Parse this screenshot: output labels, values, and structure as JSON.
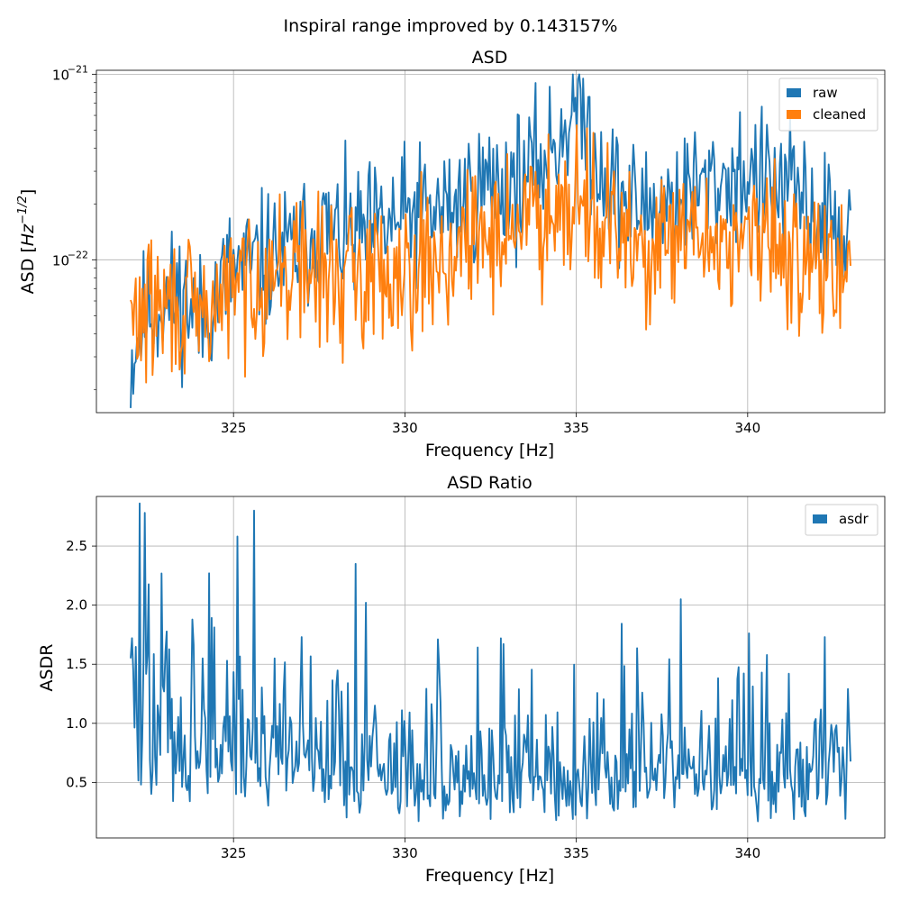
{
  "figure": {
    "suptitle": "Inspiral range improved by 0.143157%"
  },
  "chart_data": [
    {
      "type": "line",
      "title": "ASD",
      "xlabel": "Frequency [Hz]",
      "ylabel_main": "ASD [",
      "ylabel_math": "Hz",
      "ylabel_exp": "−1/2",
      "ylabel_close": "]",
      "xlim": [
        321,
        344
      ],
      "ylim": [
        1.5e-23,
        1.05e-21
      ],
      "yscale": "log",
      "xticks": [
        325,
        330,
        335,
        340
      ],
      "xtick_labels": [
        "325",
        "330",
        "335",
        "340"
      ],
      "yticks": [
        {
          "value": 1e-22,
          "base": "10",
          "exp": "−22"
        },
        {
          "value": 1e-21,
          "base": "10",
          "exp": "−21"
        }
      ],
      "grid": true,
      "legend_position": "top-right",
      "series": [
        {
          "name": "raw",
          "color": "#1f77b4",
          "x_range": [
            322.0,
            343.0
          ],
          "keypoints": [
            [
              322.0,
              2.7e-23
            ],
            [
              322.5,
              5.5e-23
            ],
            [
              323.0,
              6e-23
            ],
            [
              323.5,
              6.5e-23
            ],
            [
              324.0,
              4.5e-23
            ],
            [
              324.5,
              6.5e-23
            ],
            [
              325.0,
              9e-23
            ],
            [
              325.5,
              9e-23
            ],
            [
              326.0,
              1e-22
            ],
            [
              326.5,
              1.05e-22
            ],
            [
              327.0,
              1.2e-22
            ],
            [
              327.5,
              1.5e-22
            ],
            [
              328.0,
              1.35e-22
            ],
            [
              328.5,
              1.3e-22
            ],
            [
              329.0,
              1.4e-22
            ],
            [
              329.5,
              1.5e-22
            ],
            [
              330.0,
              1.7e-22
            ],
            [
              330.5,
              1.8e-22
            ],
            [
              331.0,
              1.8e-22
            ],
            [
              331.5,
              2e-22
            ],
            [
              332.0,
              2.3e-22
            ],
            [
              332.5,
              2.6e-22
            ],
            [
              333.0,
              2.6e-22
            ],
            [
              333.5,
              2.8e-22
            ],
            [
              334.0,
              3.3e-22
            ],
            [
              334.5,
              4.5e-22
            ],
            [
              334.9,
              6.5e-22
            ],
            [
              335.2,
              6e-22
            ],
            [
              335.5,
              3.8e-22
            ],
            [
              336.0,
              2.6e-22
            ],
            [
              336.5,
              2e-22
            ],
            [
              337.0,
              1.9e-22
            ],
            [
              337.5,
              2e-22
            ],
            [
              338.0,
              2.2e-22
            ],
            [
              338.5,
              2.4e-22
            ],
            [
              339.0,
              2.5e-22
            ],
            [
              339.5,
              2.8e-22
            ],
            [
              340.0,
              2.9e-22
            ],
            [
              340.5,
              2.6e-22
            ],
            [
              341.0,
              2.4e-22
            ],
            [
              341.5,
              2.2e-22
            ],
            [
              342.0,
              1.8e-22
            ],
            [
              342.5,
              1.5e-22
            ],
            [
              343.0,
              1.3e-22
            ]
          ],
          "noise": 0.42,
          "seed": 11
        },
        {
          "name": "cleaned",
          "color": "#ff7f0e",
          "x_range": [
            322.0,
            343.0
          ],
          "keypoints": [
            [
              322.0,
              4.5e-23
            ],
            [
              322.5,
              5.5e-23
            ],
            [
              323.0,
              5.5e-23
            ],
            [
              323.5,
              5.5e-23
            ],
            [
              324.0,
              4.5e-23
            ],
            [
              324.5,
              6e-23
            ],
            [
              325.0,
              7e-23
            ],
            [
              325.5,
              8e-23
            ],
            [
              326.0,
              8.5e-23
            ],
            [
              326.5,
              9e-23
            ],
            [
              327.0,
              9e-23
            ],
            [
              327.5,
              8.5e-23
            ],
            [
              328.0,
              8e-23
            ],
            [
              328.5,
              8e-23
            ],
            [
              329.0,
              8.5e-23
            ],
            [
              329.5,
              9e-23
            ],
            [
              330.0,
              9.5e-23
            ],
            [
              330.5,
              1e-22
            ],
            [
              331.0,
              1e-22
            ],
            [
              331.5,
              1.1e-22
            ],
            [
              332.0,
              1.2e-22
            ],
            [
              332.5,
              1.4e-22
            ],
            [
              333.0,
              1.5e-22
            ],
            [
              333.5,
              1.7e-22
            ],
            [
              334.0,
              1.8e-22
            ],
            [
              334.5,
              2.2e-22
            ],
            [
              335.0,
              2.4e-22
            ],
            [
              335.5,
              1.9e-22
            ],
            [
              336.0,
              1.4e-22
            ],
            [
              336.5,
              1.2e-22
            ],
            [
              337.0,
              1.1e-22
            ],
            [
              337.5,
              1.1e-22
            ],
            [
              338.0,
              1.2e-22
            ],
            [
              338.5,
              1.3e-22
            ],
            [
              339.0,
              1.3e-22
            ],
            [
              339.5,
              1.3e-22
            ],
            [
              340.0,
              1.3e-22
            ],
            [
              340.5,
              1.2e-22
            ],
            [
              341.0,
              1.2e-22
            ],
            [
              341.5,
              1.1e-22
            ],
            [
              342.0,
              1e-22
            ],
            [
              342.5,
              8.5e-23
            ],
            [
              343.0,
              7e-23
            ]
          ],
          "noise": 0.45,
          "seed": 29
        }
      ]
    },
    {
      "type": "line",
      "title": "ASD Ratio",
      "xlabel": "Frequency [Hz]",
      "ylabel": "ASDR",
      "xlim": [
        321,
        344
      ],
      "ylim": [
        0.03,
        2.92
      ],
      "yscale": "linear",
      "xticks": [
        325,
        330,
        335,
        340
      ],
      "xtick_labels": [
        "325",
        "330",
        "335",
        "340"
      ],
      "yticks": [
        0.5,
        1.0,
        1.5,
        2.0,
        2.5
      ],
      "ytick_labels": [
        "0.5",
        "1.0",
        "1.5",
        "2.0",
        "2.5"
      ],
      "grid": true,
      "legend_position": "top-right",
      "series": [
        {
          "name": "asdr",
          "color": "#1f77b4",
          "x_range": [
            322.0,
            343.0
          ],
          "keypoints": [
            [
              322.0,
              1.2
            ],
            [
              322.5,
              0.95
            ],
            [
              323.0,
              0.95
            ],
            [
              323.5,
              0.9
            ],
            [
              324.0,
              0.85
            ],
            [
              324.5,
              0.85
            ],
            [
              325.0,
              0.75
            ],
            [
              325.5,
              0.75
            ],
            [
              326.0,
              0.8
            ],
            [
              326.5,
              0.8
            ],
            [
              327.0,
              0.8
            ],
            [
              327.5,
              0.75
            ],
            [
              328.0,
              0.7
            ],
            [
              328.5,
              0.6
            ],
            [
              329.0,
              0.6
            ],
            [
              329.5,
              0.6
            ],
            [
              330.0,
              0.55
            ],
            [
              330.5,
              0.55
            ],
            [
              331.0,
              0.55
            ],
            [
              331.5,
              0.55
            ],
            [
              332.0,
              0.55
            ],
            [
              332.5,
              0.6
            ],
            [
              333.0,
              0.6
            ],
            [
              333.5,
              0.6
            ],
            [
              334.0,
              0.6
            ],
            [
              334.5,
              0.55
            ],
            [
              335.0,
              0.5
            ],
            [
              335.5,
              0.55
            ],
            [
              336.0,
              0.6
            ],
            [
              336.5,
              0.6
            ],
            [
              337.0,
              0.6
            ],
            [
              337.5,
              0.6
            ],
            [
              338.0,
              0.6
            ],
            [
              338.5,
              0.6
            ],
            [
              339.0,
              0.55
            ],
            [
              339.5,
              0.55
            ],
            [
              340.0,
              0.55
            ],
            [
              340.5,
              0.6
            ],
            [
              341.0,
              0.6
            ],
            [
              341.5,
              0.6
            ],
            [
              342.0,
              0.6
            ],
            [
              342.5,
              0.6
            ],
            [
              343.0,
              0.55
            ]
          ],
          "spikes": [
            [
              322.0,
              1.55
            ],
            [
              323.0,
              1.6
            ],
            [
              324.1,
              1.55
            ],
            [
              324.8,
              1.53
            ],
            [
              325.6,
              2.8
            ],
            [
              326.2,
              1.55
            ],
            [
              327.0,
              1.73
            ],
            [
              328.55,
              2.35
            ],
            [
              328.85,
              2.02
            ],
            [
              331.0,
              1.48
            ],
            [
              332.8,
              1.72
            ],
            [
              338.05,
              2.05
            ],
            [
              340.4,
              1.43
            ],
            [
              341.2,
              1.42
            ],
            [
              342.25,
              1.73
            ]
          ],
          "noise": 0.55,
          "seed": 47
        }
      ]
    }
  ]
}
